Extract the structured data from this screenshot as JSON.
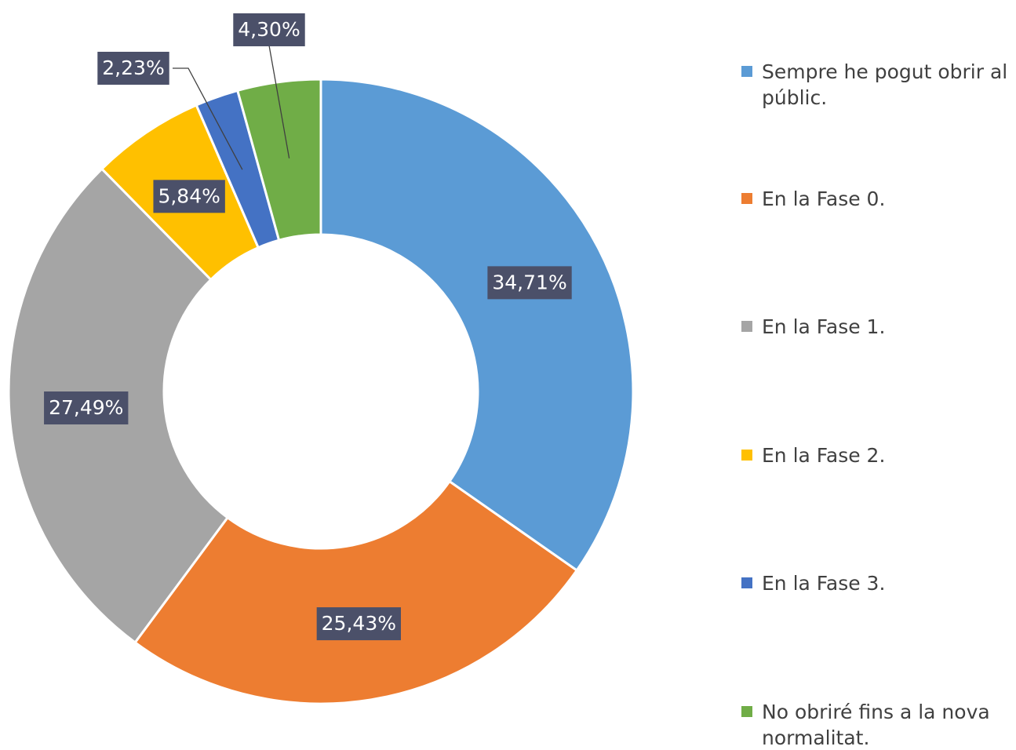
{
  "chart_data": {
    "type": "donut",
    "categories": [
      "Sempre he pogut obrir al públic.",
      "En la Fase 0.",
      "En la Fase 1.",
      "En la Fase 2.",
      "En la Fase 3.",
      "No obriré fins a la nova normalitat."
    ],
    "values": [
      34.71,
      25.43,
      27.49,
      5.84,
      2.23,
      4.3
    ],
    "value_labels": [
      "34,71%",
      "25,43%",
      "27,49%",
      "5,84%",
      "2,23%",
      "4,30%"
    ],
    "colors": [
      "#5b9bd5",
      "#ed7d31",
      "#a5a5a5",
      "#ffc000",
      "#4472c4",
      "#70ad47"
    ],
    "legend": "right"
  }
}
